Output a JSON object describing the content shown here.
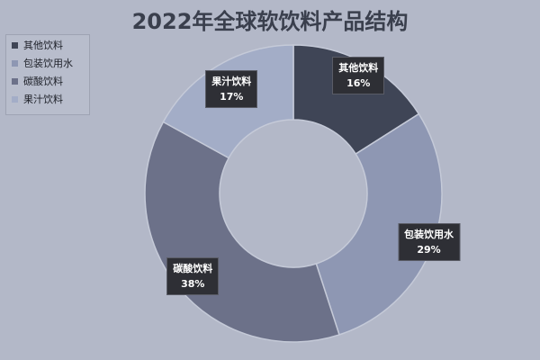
{
  "chart_data": {
    "type": "pie",
    "title": "2022年全球软饮料产品结构",
    "categories": [
      "其他饮料",
      "包装饮用水",
      "碳酸饮料",
      "果汁饮料"
    ],
    "values": [
      16,
      29,
      38,
      17
    ],
    "value_labels": [
      "16%",
      "29%",
      "38%",
      "17%"
    ],
    "colors": [
      "#3f4556",
      "#8e97b3",
      "#6c7189",
      "#a3adc7"
    ],
    "legend_placement": "top-left",
    "donut": true
  },
  "legend_title": ""
}
